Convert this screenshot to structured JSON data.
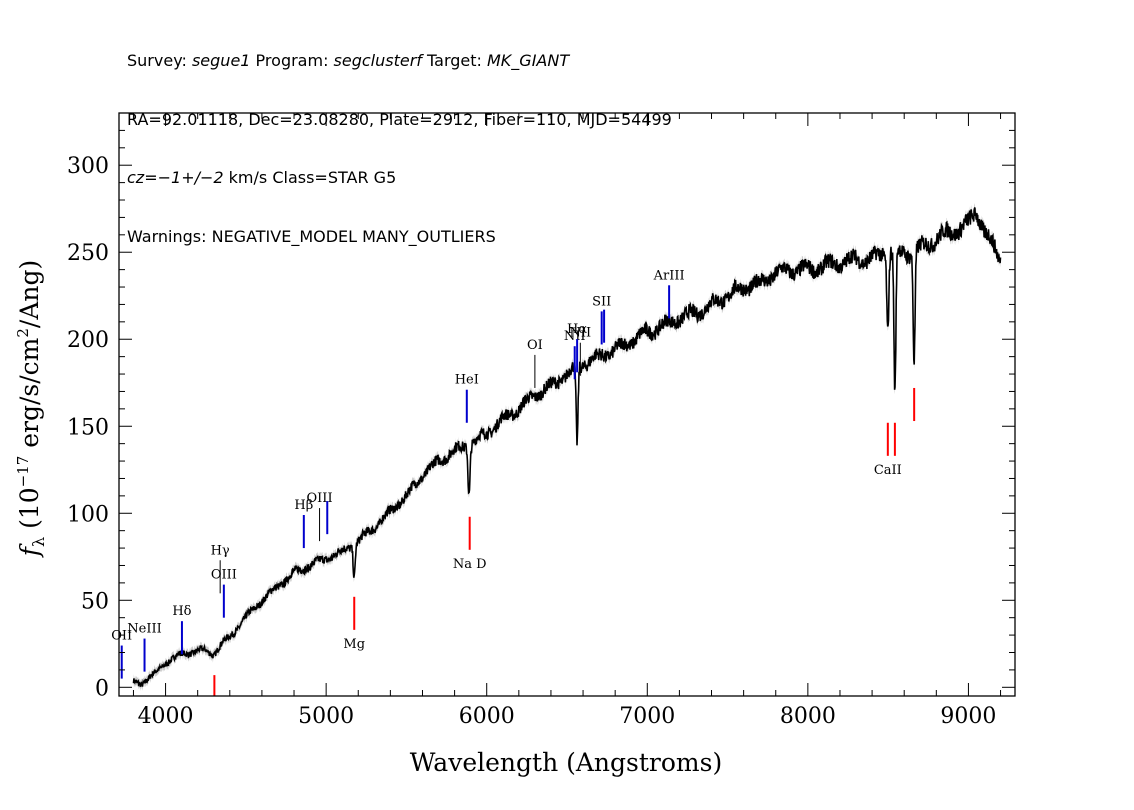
{
  "header": {
    "line1": [
      {
        "t": "Survey: ",
        "i": false
      },
      {
        "t": "segue1",
        "i": true
      },
      {
        "t": " Program: ",
        "i": false
      },
      {
        "t": "segclusterf",
        "i": true
      },
      {
        "t": " Target: ",
        "i": false
      },
      {
        "t": "MK_GIANT",
        "i": true
      }
    ],
    "line2": "RA=92.01118, Dec=23.08280, Plate=2912, Fiber=110, MJD=54499",
    "line3": [
      {
        "t": "cz=−1+/−2",
        "i": true
      },
      {
        "t": " km/s Class=STAR G5",
        "i": false
      }
    ],
    "line4": "Warnings: NEGATIVE_MODEL MANY_OUTLIERS"
  },
  "chart_data": {
    "type": "line",
    "xlabel": "Wavelength (Angstroms)",
    "ylabel_parts": [
      "f",
      "λ",
      " (10",
      "−17",
      " erg/s/cm",
      "2",
      "/Ang)"
    ],
    "xlim": [
      3710,
      9290
    ],
    "ylim": [
      -5,
      330
    ],
    "xticks": [
      4000,
      5000,
      6000,
      7000,
      8000,
      9000
    ],
    "yticks": [
      0,
      50,
      100,
      150,
      200,
      250,
      300
    ],
    "line_color": "#000000",
    "error_color": "#a9a9a9",
    "emission_color": "#0000cd",
    "absorption_color": "#ff0000",
    "spectrum": {
      "x": [
        3800,
        3850,
        3900,
        3950,
        4000,
        4050,
        4100,
        4150,
        4200,
        4250,
        4300,
        4350,
        4400,
        4500,
        4600,
        4700,
        4800,
        4900,
        5000,
        5100,
        5200,
        5300,
        5400,
        5500,
        5600,
        5700,
        5800,
        5900,
        6000,
        6100,
        6200,
        6300,
        6400,
        6500,
        6600,
        6700,
        6800,
        6900,
        7000,
        7100,
        7200,
        7300,
        7400,
        7500,
        7600,
        7700,
        7800,
        7900,
        8000,
        8100,
        8200,
        8300,
        8400,
        8500,
        8600,
        8700,
        8800,
        8900,
        9000,
        9050,
        9100,
        9150,
        9200
      ],
      "y": [
        3,
        2,
        6,
        9,
        14,
        17,
        19,
        20,
        21,
        21,
        19,
        25,
        29,
        40,
        50,
        58,
        66,
        70,
        74,
        78,
        84,
        92,
        101,
        110,
        122,
        130,
        136,
        140,
        146,
        154,
        160,
        168,
        173,
        180,
        186,
        190,
        194,
        199,
        204,
        208,
        212,
        215,
        220,
        225,
        230,
        232,
        238,
        240,
        240,
        242,
        244,
        246,
        246,
        251,
        249,
        252,
        258,
        262,
        266,
        274,
        262,
        254,
        246
      ]
    },
    "absorption_dips": [
      {
        "x": 5175,
        "y": 64
      },
      {
        "x": 5890,
        "y": 112
      },
      {
        "x": 6563,
        "y": 140
      },
      {
        "x": 8498,
        "y": 206
      },
      {
        "x": 8542,
        "y": 168
      },
      {
        "x": 8662,
        "y": 188
      }
    ],
    "line_markers": [
      {
        "label": "OII",
        "x": 3727,
        "y_low": 5,
        "y_high": 24,
        "kind": "emission"
      },
      {
        "label": "NeIII",
        "x": 3869,
        "y_low": 9,
        "y_high": 28,
        "kind": "emission"
      },
      {
        "label": "Hδ",
        "x": 4102,
        "y_low": 19,
        "y_high": 38,
        "kind": "emission"
      },
      {
        "label": "Hγ",
        "x": 4340,
        "y_low": 54,
        "y_high": 73,
        "kind": "emission"
      },
      {
        "label": "OIII",
        "x": 4363,
        "y_low": 40,
        "y_high": 59,
        "kind": "emission"
      },
      {
        "label": "Hβ",
        "x": 4861,
        "y_low": 80,
        "y_high": 99,
        "kind": "emission"
      },
      {
        "label": "OIII",
        "x": 4959,
        "y_low": 84,
        "y_high": 103,
        "kind": "emission"
      },
      {
        "label": "",
        "x": 5007,
        "y_low": 88,
        "y_high": 107,
        "kind": "emission"
      },
      {
        "label": "HeI",
        "x": 5876,
        "y_low": 152,
        "y_high": 171,
        "kind": "emission"
      },
      {
        "label": "OI",
        "x": 6300,
        "y_low": 172,
        "y_high": 191,
        "kind": "emission"
      },
      {
        "label": "NII",
        "x": 6548,
        "y_low": 177,
        "y_high": 196,
        "kind": "emission"
      },
      {
        "label": "Hα",
        "x": 6563,
        "y_low": 181,
        "y_high": 200,
        "kind": "emission"
      },
      {
        "label": "NII",
        "x": 6583,
        "y_low": 179,
        "y_high": 198,
        "kind": "emission"
      },
      {
        "label": "SII",
        "x": 6716,
        "y_low": 197,
        "y_high": 216,
        "kind": "emission"
      },
      {
        "label": "",
        "x": 6731,
        "y_low": 198,
        "y_high": 217,
        "kind": "emission"
      },
      {
        "label": "ArIII",
        "x": 7136,
        "y_low": 212,
        "y_high": 231,
        "kind": "emission"
      },
      {
        "label": "",
        "x": 4304,
        "y_low": -5,
        "y_high": 7,
        "kind": "absorption"
      },
      {
        "label": "Mg",
        "x": 5175,
        "y_low": 33,
        "y_high": 52,
        "kind": "absorption"
      },
      {
        "label": "Na D",
        "x": 5894,
        "y_low": 79,
        "y_high": 98,
        "kind": "absorption"
      },
      {
        "label": "CaII",
        "x": 8498,
        "y_low": 133,
        "y_high": 152,
        "kind": "absorption"
      },
      {
        "label": "",
        "x": 8542,
        "y_low": 133,
        "y_high": 152,
        "kind": "absorption"
      },
      {
        "label": "",
        "x": 8662,
        "y_low": 153,
        "y_high": 172,
        "kind": "absorption"
      }
    ]
  }
}
